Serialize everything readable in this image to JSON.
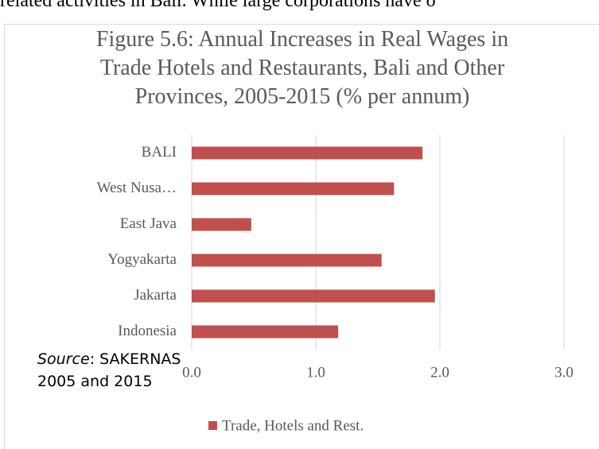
{
  "context_text": "related activities in Bali. While large corporations have o",
  "chart_data": {
    "type": "hbar",
    "title": "Figure 5.6: Annual Increases in Real Wages in Trade Hotels and Restaurants, Bali and Other Provinces, 2005-2015 (% per annum)",
    "categories": [
      "BALI",
      "West Nusa…",
      "East Java",
      "Yogyakarta",
      "Jakarta",
      "Indonesia"
    ],
    "series": [
      {
        "name": "Trade, Hotels and Rest.",
        "color": "#c0504d",
        "values": [
          1.86,
          1.63,
          0.48,
          1.53,
          1.96,
          1.18
        ]
      }
    ],
    "xlim": [
      0,
      3
    ],
    "xticks": [
      {
        "value": 0,
        "label": "0.0"
      },
      {
        "value": 1,
        "label": "1.0"
      },
      {
        "value": 2,
        "label": "2.0"
      },
      {
        "value": 3,
        "label": "3.0"
      }
    ],
    "grid": true,
    "legend": "bottom"
  },
  "source": {
    "label": "Source",
    "text": ": SAKERNAS 2005 and 2015"
  }
}
